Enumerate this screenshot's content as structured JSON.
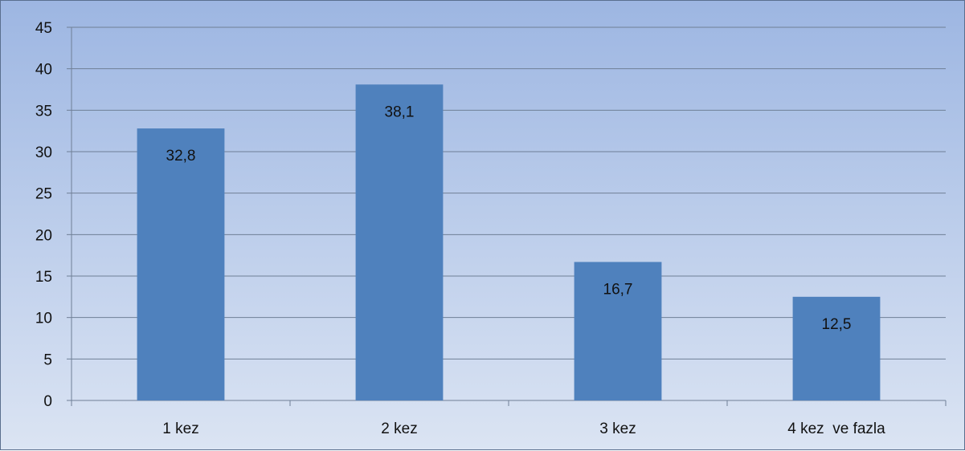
{
  "chart_data": {
    "type": "bar",
    "categories": [
      "1 kez",
      "2 kez",
      "3 kez",
      "4 kez  ve fazla"
    ],
    "values": [
      32.8,
      38.1,
      16.7,
      12.5
    ],
    "data_labels": [
      "32,8",
      "38,1",
      "16,7",
      "12,5"
    ],
    "ylim": [
      0,
      45
    ],
    "yticks": [
      0,
      5,
      10,
      15,
      20,
      25,
      30,
      35,
      40,
      45
    ],
    "grid": true,
    "legend": "none",
    "bar_color": "#4f81bd"
  }
}
